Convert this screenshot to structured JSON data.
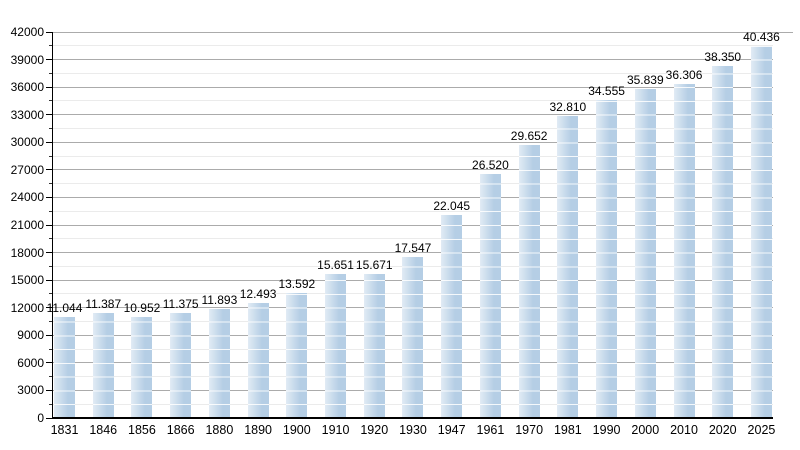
{
  "chart_data": {
    "type": "bar",
    "title": "",
    "xlabel": "",
    "ylabel": "",
    "categories": [
      "1831",
      "1846",
      "1856",
      "1866",
      "1880",
      "1890",
      "1900",
      "1910",
      "1920",
      "1930",
      "1947",
      "1961",
      "1970",
      "1981",
      "1990",
      "2000",
      "2010",
      "2020",
      "2025"
    ],
    "values": [
      11044,
      11387,
      10952,
      11375,
      11893,
      12493,
      13592,
      15651,
      15671,
      17547,
      22045,
      26520,
      29652,
      32810,
      34555,
      35839,
      36306,
      38350,
      40436
    ],
    "value_labels": [
      "11.044",
      "11.387",
      "10.952",
      "11.375",
      "11.893",
      "12.493",
      "13.592",
      "15.651",
      "15.671",
      "17.547",
      "22.045",
      "26.520",
      "29.652",
      "32.810",
      "34.555",
      "35.839",
      "36.306",
      "38.350",
      "40.436"
    ],
    "ylim": [
      0,
      42000
    ],
    "ytick_step": 3000,
    "minor_tick_step": 1500,
    "ytick_labels": [
      "0",
      "3000",
      "6000",
      "9000",
      "12000",
      "15000",
      "18000",
      "21000",
      "24000",
      "27000",
      "30000",
      "33000",
      "36000",
      "39000",
      "42000"
    ],
    "grid": true,
    "legend": false,
    "colors": {
      "bar": "#b5cee5",
      "bar_stripe": "#ffffff",
      "grid_major": "#ababab",
      "grid_minor": "#ebebeb",
      "axis": "#000000",
      "text": "#000000",
      "background": "#ffffff"
    }
  }
}
